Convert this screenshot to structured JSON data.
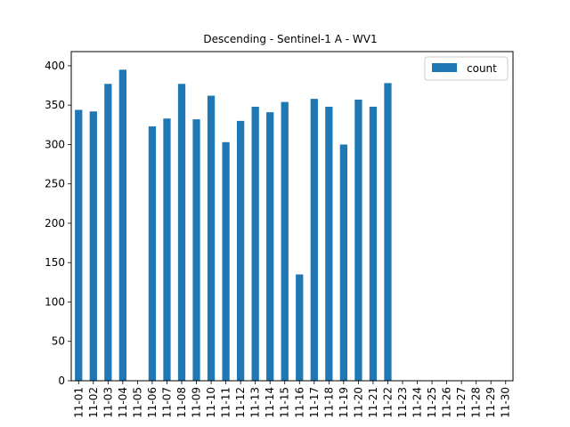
{
  "chart_data": {
    "type": "bar",
    "title": "Descending - Sentinel-1 A - WV1",
    "xlabel": "",
    "ylabel": "",
    "categories": [
      "11-01",
      "11-02",
      "11-03",
      "11-04",
      "11-05",
      "11-06",
      "11-07",
      "11-08",
      "11-09",
      "11-10",
      "11-11",
      "11-12",
      "11-13",
      "11-14",
      "11-15",
      "11-16",
      "11-17",
      "11-18",
      "11-19",
      "11-20",
      "11-21",
      "11-22",
      "11-23",
      "11-24",
      "11-25",
      "11-26",
      "11-27",
      "11-28",
      "11-29",
      "11-30"
    ],
    "series": [
      {
        "name": "count",
        "color": "#1f77b4",
        "values": [
          344,
          342,
          377,
          395,
          0,
          323,
          333,
          377,
          332,
          362,
          303,
          330,
          348,
          341,
          354,
          135,
          358,
          348,
          300,
          357,
          348,
          378,
          0,
          0,
          0,
          0,
          0,
          0,
          0,
          0
        ]
      }
    ],
    "ylim": [
      0,
      418
    ],
    "yticks": [
      0,
      50,
      100,
      150,
      200,
      250,
      300,
      350,
      400
    ],
    "grid": false,
    "legend": "top-right"
  }
}
